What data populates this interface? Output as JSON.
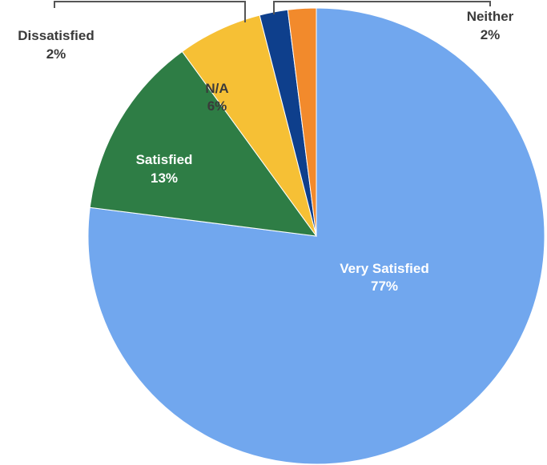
{
  "chart_data": {
    "type": "pie",
    "slices": [
      {
        "label": "Very Satisfied",
        "value": 77,
        "value_label": "77%",
        "color": "#71a7ee"
      },
      {
        "label": "Satisfied",
        "value": 13,
        "value_label": "13%",
        "color": "#2e7d45"
      },
      {
        "label": "N/A",
        "value": 6,
        "value_label": "6%",
        "color": "#f6c035"
      },
      {
        "label": "Dissatisfied",
        "value": 2,
        "value_label": "2%",
        "color": "#0e3f8c"
      },
      {
        "label": "Neither",
        "value": 2,
        "value_label": "2%",
        "color": "#f28a2c"
      }
    ],
    "legend": "none",
    "title": ""
  }
}
